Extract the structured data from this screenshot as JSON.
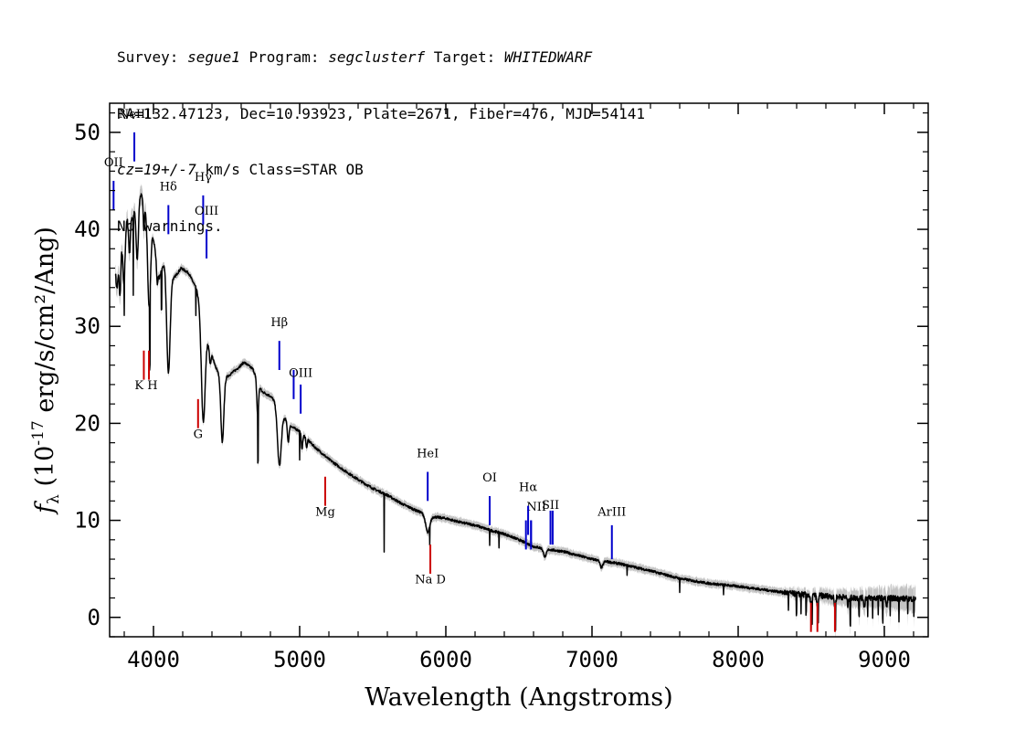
{
  "header": {
    "line1": {
      "survey_label": "Survey: ",
      "survey": "segue1",
      "program_label": " Program: ",
      "program": "segclusterf",
      "target_label": " Target: ",
      "target": "WHITEDWARF"
    },
    "line2": "RA=132.47123, Dec=10.93923, Plate=2671, Fiber=476, MJD=54141",
    "line3": {
      "cz": "cz=19+/-7",
      "rest": " km/s Class=STAR OB"
    },
    "line4": "No warnings."
  },
  "chart_data": {
    "type": "line",
    "xlabel": "Wavelength (Angstroms)",
    "ylabel": "f_λ (10^-17 erg/s/cm²/Ang)",
    "xlim": [
      3700,
      9300
    ],
    "ylim": [
      -2,
      53
    ],
    "xticks": [
      4000,
      5000,
      6000,
      7000,
      8000,
      9000
    ],
    "yticks": [
      0,
      10,
      20,
      30,
      40,
      50
    ],
    "grid": false,
    "colors": {
      "flux": "#000000",
      "error": "#b4b4b4",
      "emission": "#0000cc",
      "absorption": "#cc0000"
    },
    "series": [
      {
        "type": "continuum",
        "points": [
          [
            3800,
            38
          ],
          [
            3830,
            43
          ],
          [
            3860,
            41
          ],
          [
            3890,
            44
          ],
          [
            3920,
            43.5
          ],
          [
            3950,
            42
          ],
          [
            3990,
            40
          ],
          [
            4040,
            35
          ],
          [
            4080,
            37
          ],
          [
            4140,
            35
          ],
          [
            4190,
            36
          ],
          [
            4240,
            35.5
          ],
          [
            4290,
            34
          ],
          [
            4330,
            32
          ],
          [
            4380,
            28
          ],
          [
            4420,
            26
          ],
          [
            4470,
            24.5
          ],
          [
            4520,
            25
          ],
          [
            4570,
            25.6
          ],
          [
            4620,
            26.3
          ],
          [
            4680,
            25.6
          ],
          [
            4740,
            23.3
          ],
          [
            4800,
            22.8
          ],
          [
            4850,
            22
          ],
          [
            4900,
            20.5
          ],
          [
            4950,
            19.6
          ],
          [
            5000,
            19.2
          ],
          [
            5100,
            17.6
          ],
          [
            5200,
            16.3
          ],
          [
            5300,
            15.2
          ],
          [
            5400,
            14.2
          ],
          [
            5500,
            13.3
          ],
          [
            5600,
            12.6
          ],
          [
            5700,
            11.7
          ],
          [
            5800,
            11
          ],
          [
            5900,
            10.4
          ],
          [
            6000,
            10.2
          ],
          [
            6100,
            9.8
          ],
          [
            6200,
            9.5
          ],
          [
            6300,
            9
          ],
          [
            6400,
            8.6
          ],
          [
            6500,
            8
          ],
          [
            6600,
            7.3
          ],
          [
            6700,
            7
          ],
          [
            6800,
            6.8
          ],
          [
            6900,
            6.4
          ],
          [
            7000,
            6
          ],
          [
            7200,
            5.5
          ],
          [
            7400,
            4.8
          ],
          [
            7600,
            4
          ],
          [
            7800,
            3.5
          ],
          [
            8000,
            3.2
          ],
          [
            8200,
            2.8
          ],
          [
            8400,
            2.4
          ],
          [
            8600,
            2.2
          ],
          [
            8800,
            2
          ],
          [
            9000,
            2
          ],
          [
            9200,
            1.9
          ]
        ]
      },
      {
        "type": "absorption",
        "features": [
          [
            3750,
            4.0,
            10
          ],
          [
            3771,
            4.5,
            5
          ],
          [
            3798,
            4.0,
            6
          ],
          [
            3835,
            5.0,
            7
          ],
          [
            3889,
            7.0,
            8
          ],
          [
            3934,
            3.0,
            4
          ],
          [
            3970,
            9.0,
            10
          ],
          [
            4026,
            2.0,
            5
          ],
          [
            4102,
            11.0,
            12
          ],
          [
            4340,
            11.0,
            13
          ],
          [
            4388,
            1.5,
            5
          ],
          [
            4471,
            6.5,
            10
          ],
          [
            4713,
            3.5,
            6
          ],
          [
            4861,
            6.0,
            13
          ],
          [
            4922,
            2.0,
            6
          ],
          [
            5016,
            1.5,
            5
          ],
          [
            5048,
            1.0,
            4
          ],
          [
            5876,
            1.8,
            14
          ],
          [
            6678,
            0.8,
            10
          ],
          [
            7065,
            0.7,
            10
          ],
          [
            8498,
            1.0,
            5
          ],
          [
            8542,
            1.1,
            5
          ],
          [
            8662,
            1.1,
            5
          ],
          [
            8750,
            0.8,
            4
          ],
          [
            8863,
            0.9,
            4
          ],
          [
            9015,
            0.9,
            4
          ],
          [
            9229,
            1.0,
            4
          ]
        ]
      },
      {
        "type": "spikes",
        "features": [
          [
            3800,
            -3
          ],
          [
            3862,
            -8
          ],
          [
            3975,
            -7
          ],
          [
            4055,
            -4
          ],
          [
            4290,
            -3
          ],
          [
            4715,
            -5
          ],
          [
            5000,
            -3
          ],
          [
            5578,
            -6
          ],
          [
            5890,
            -2
          ],
          [
            6300,
            -1.5
          ],
          [
            6364,
            -1.5
          ],
          [
            7240,
            -1
          ],
          [
            7600,
            -1.5
          ],
          [
            7900,
            -1
          ],
          [
            8344,
            -2
          ],
          [
            8399,
            -2.2
          ],
          [
            8430,
            -1.8
          ],
          [
            8465,
            -2
          ],
          [
            8505,
            -2.5
          ],
          [
            8548,
            -2.5
          ],
          [
            8665,
            -2.5
          ],
          [
            8767,
            -2.8
          ],
          [
            8827,
            -1.8
          ],
          [
            8886,
            -2
          ],
          [
            8920,
            -2.2
          ],
          [
            8958,
            -2
          ],
          [
            8989,
            -2.4
          ],
          [
            9040,
            -2
          ],
          [
            9100,
            -2.2
          ],
          [
            9160,
            -1.8
          ],
          [
            9202,
            -2
          ]
        ]
      }
    ],
    "emission_lines": [
      {
        "label": "OII",
        "x": 3727,
        "top": 45,
        "bottom": 42,
        "label_y": 46.5
      },
      {
        "label": "NeIII",
        "x": 3869,
        "top": 50,
        "bottom": 47,
        "label_y": 51.5
      },
      {
        "label": "Hδ",
        "x": 4102,
        "top": 42.5,
        "bottom": 39.5,
        "label_y": 44
      },
      {
        "label": "Hγ",
        "x": 4340,
        "top": 43.5,
        "bottom": 40.5,
        "label_y": 45
      },
      {
        "label": "OIII",
        "x": 4363,
        "top": 40,
        "bottom": 37,
        "label_y": 41.5
      },
      {
        "label": "Hβ",
        "x": 4861,
        "top": 28.5,
        "bottom": 25.5,
        "label_y": 30
      },
      {
        "label": "OIII",
        "x": 4959,
        "top": 25.5,
        "bottom": 22.5,
        "label_y": 24.8,
        "hide_label": true
      },
      {
        "label": "OIII",
        "x": 5007,
        "top": 24,
        "bottom": 21,
        "label_y": 24.8
      },
      {
        "label": "HeI",
        "x": 5876,
        "top": 15,
        "bottom": 12,
        "label_y": 16.5
      },
      {
        "label": "OI",
        "x": 6300,
        "top": 12.5,
        "bottom": 9.5,
        "label_y": 14
      },
      {
        "label": "NII",
        "x": 6548,
        "top": 10,
        "bottom": 7,
        "label_y": 11,
        "hide_label": true
      },
      {
        "label": "NII",
        "x": 6583,
        "top": 10,
        "bottom": 7,
        "label_y": 11
      },
      {
        "label": "Hα",
        "x": 6563,
        "top": 11.5,
        "bottom": 8.5,
        "label_y": 13
      },
      {
        "label": "NII",
        "x": 6583,
        "top": 10,
        "bottom": 7.5,
        "label_y": 11,
        "hide_label": true
      },
      {
        "label": "SII",
        "x": 6716,
        "top": 11,
        "bottom": 7.5,
        "label_y": 11.2
      },
      {
        "label": "SII",
        "x": 6731,
        "top": 11,
        "bottom": 7.5,
        "label_y": 11.2,
        "hide_label": true
      },
      {
        "label": "ArIII",
        "x": 7136,
        "top": 9.5,
        "bottom": 6,
        "label_y": 10.5
      }
    ],
    "nii_label_x": 6620,
    "absorption_lines": [
      {
        "label": "K",
        "x": 3934,
        "top": 27.5,
        "bottom": 24.5
      },
      {
        "label": "H",
        "x": 3969,
        "top": 27.5,
        "bottom": 24.5
      },
      {
        "label": "G",
        "x": 4305,
        "top": 22.5,
        "bottom": 19.5,
        "label_y": 18.5
      },
      {
        "label": "Mg",
        "x": 5175,
        "top": 14.5,
        "bottom": 11.5,
        "label_y": 10.5
      },
      {
        "label": "Na D",
        "x": 5894,
        "top": 7.5,
        "bottom": 4.5,
        "label_y": 3.5
      },
      {
        "x": 8498,
        "top": 1.5,
        "bottom": -1.5
      },
      {
        "x": 8542,
        "top": 1.5,
        "bottom": -1.5
      },
      {
        "x": 8662,
        "top": 1.5,
        "bottom": -1.5
      }
    ],
    "kh_label": {
      "text": "K H",
      "x": 3950,
      "y": 23.5
    }
  }
}
